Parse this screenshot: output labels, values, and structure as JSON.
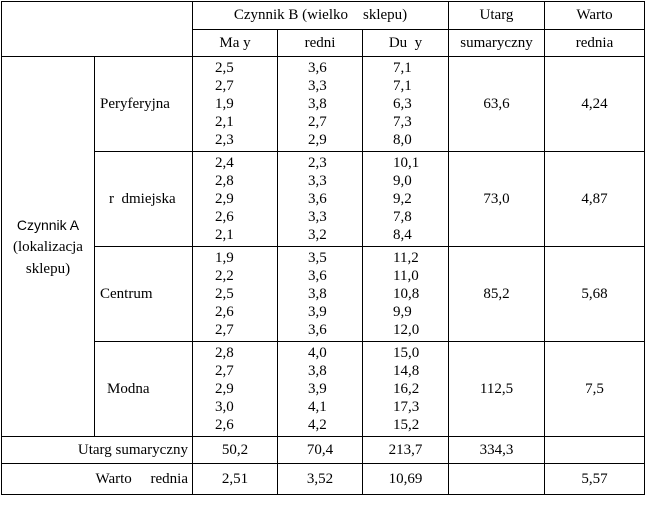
{
  "header": {
    "factor_b": "Czynnik B (wielko    sklepu)",
    "total_revenue_line1": "Utarg",
    "total_revenue_line2": "sumaryczny",
    "mean_line1": "Warto",
    "mean_line2": "rednia",
    "sizes": [
      "Ma y",
      "redni",
      "Du  y"
    ]
  },
  "factor_a": {
    "line1": "Czynnik A",
    "line2": "(lokalizacja",
    "line3": "sklepu)"
  },
  "groups": [
    {
      "location": "Peryferyjna",
      "small": [
        "2,5",
        "2,7",
        "1,9",
        "2,1",
        "2,3"
      ],
      "medium": [
        "3,6",
        "3,3",
        "3,8",
        "2,7",
        "2,9"
      ],
      "large": [
        "7,1",
        "7,1",
        "6,3",
        "7,3",
        "8,0"
      ],
      "total": "63,6",
      "mean": "4,24"
    },
    {
      "location": "r  dmiejska",
      "small": [
        "2,4",
        "2,8",
        "2,9",
        "2,6",
        "2,1"
      ],
      "medium": [
        "2,3",
        "3,3",
        "3,6",
        "3,3",
        "3,2"
      ],
      "large": [
        "10,1",
        "9,0",
        "9,2",
        "7,8",
        "8,4"
      ],
      "total": "73,0",
      "mean": "4,87"
    },
    {
      "location": "Centrum",
      "small": [
        "1,9",
        "2,2",
        "2,5",
        "2,6",
        "2,7"
      ],
      "medium": [
        "3,5",
        "3,6",
        "3,8",
        "3,9",
        "3,6"
      ],
      "large": [
        "11,2",
        "11,0",
        "10,8",
        "9,9",
        "12,0"
      ],
      "total": "85,2",
      "mean": "5,68"
    },
    {
      "location": "Modna",
      "small": [
        "2,8",
        "2,7",
        "2,9",
        "3,0",
        "2,6"
      ],
      "medium": [
        "4,0",
        "3,8",
        "3,9",
        "4,1",
        "4,2"
      ],
      "large": [
        "15,0",
        "14,8",
        "16,2",
        "17,3",
        "15,2"
      ],
      "total": "112,5",
      "mean": "7,5"
    }
  ],
  "summary": {
    "total_label": "Utarg sumaryczny",
    "totals": [
      "50,2",
      "70,4",
      "213,7"
    ],
    "grand_total": "334,3",
    "mean_label": "Warto     rednia",
    "means": [
      "2,51",
      "3,52",
      "10,69"
    ],
    "grand_mean": "5,57"
  }
}
